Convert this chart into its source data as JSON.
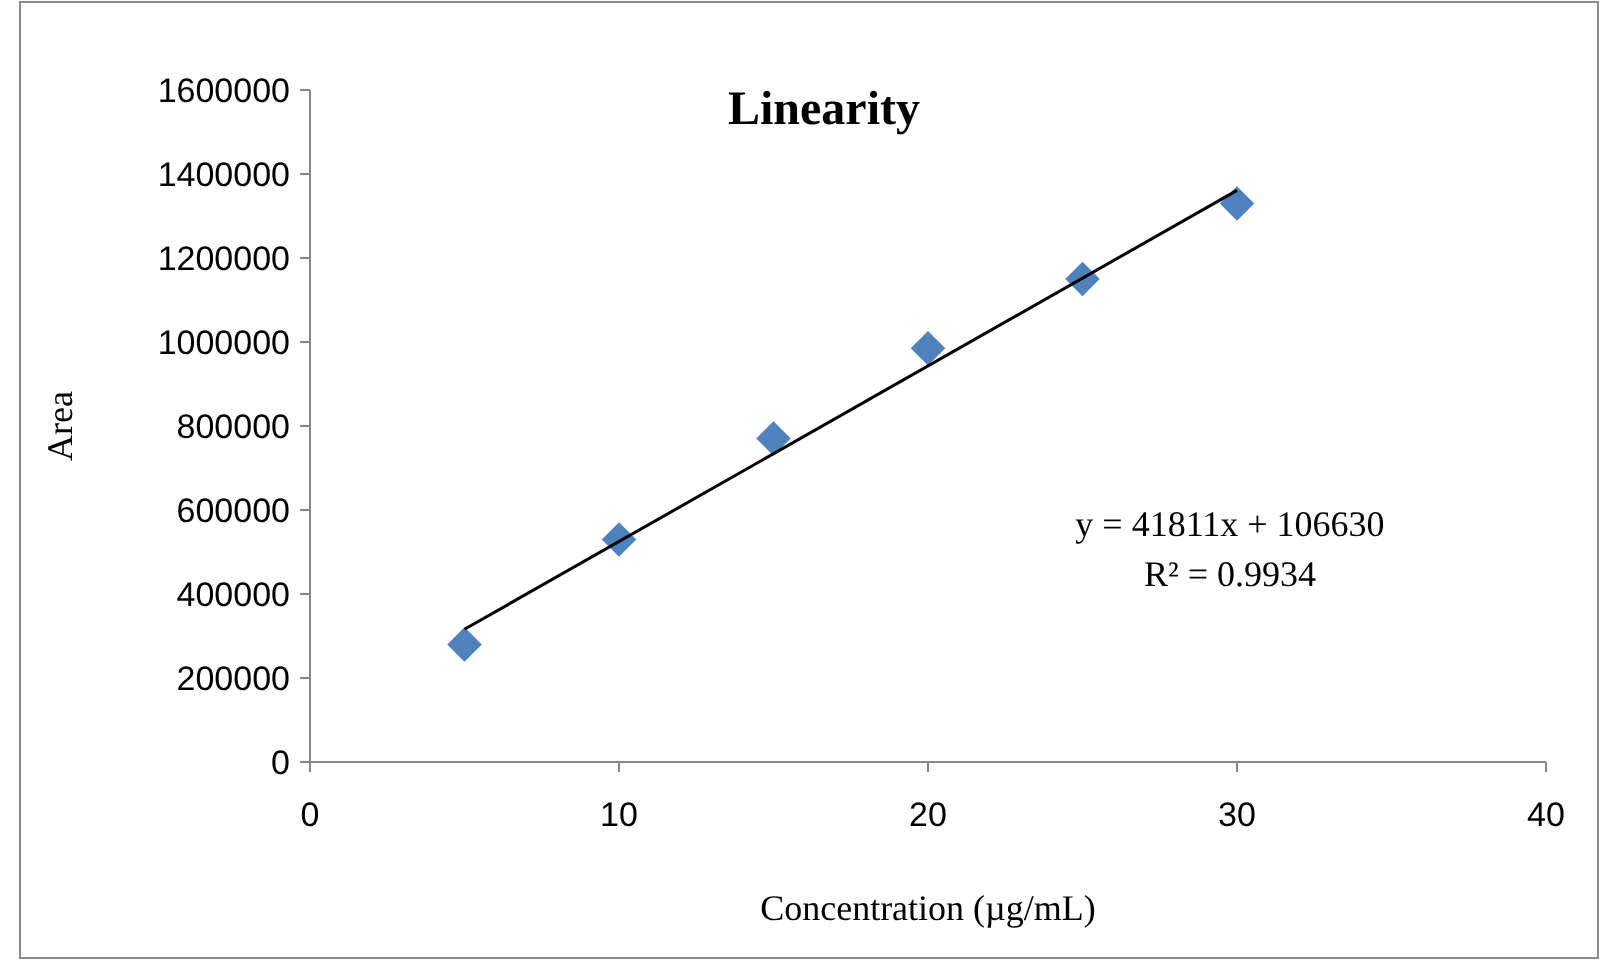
{
  "chart_data": {
    "type": "scatter",
    "title": "Linearity",
    "xlabel": "Concentration (µg/mL)",
    "ylabel": "Area",
    "xlim": [
      0,
      40
    ],
    "xticks": [
      0,
      10,
      20,
      30,
      40
    ],
    "ylim": [
      0,
      1600000
    ],
    "yticks": [
      0,
      200000,
      400000,
      600000,
      800000,
      1000000,
      1200000,
      1400000,
      1600000
    ],
    "grid": false,
    "series": [
      {
        "color": "#4f81bd",
        "marker": "diamond",
        "x": [
          5,
          10,
          15,
          20,
          25,
          30
        ],
        "values": [
          280000,
          530000,
          770000,
          985000,
          1150000,
          1330000
        ]
      },
      {
        "type": "line",
        "color": "#000000",
        "marker": "none",
        "line_style": "solid",
        "x": [
          5,
          30
        ],
        "values": [
          316000,
          1361000
        ]
      }
    ],
    "annotations": [
      "y = 41811x + 106630",
      "R² = 0.9934"
    ]
  }
}
